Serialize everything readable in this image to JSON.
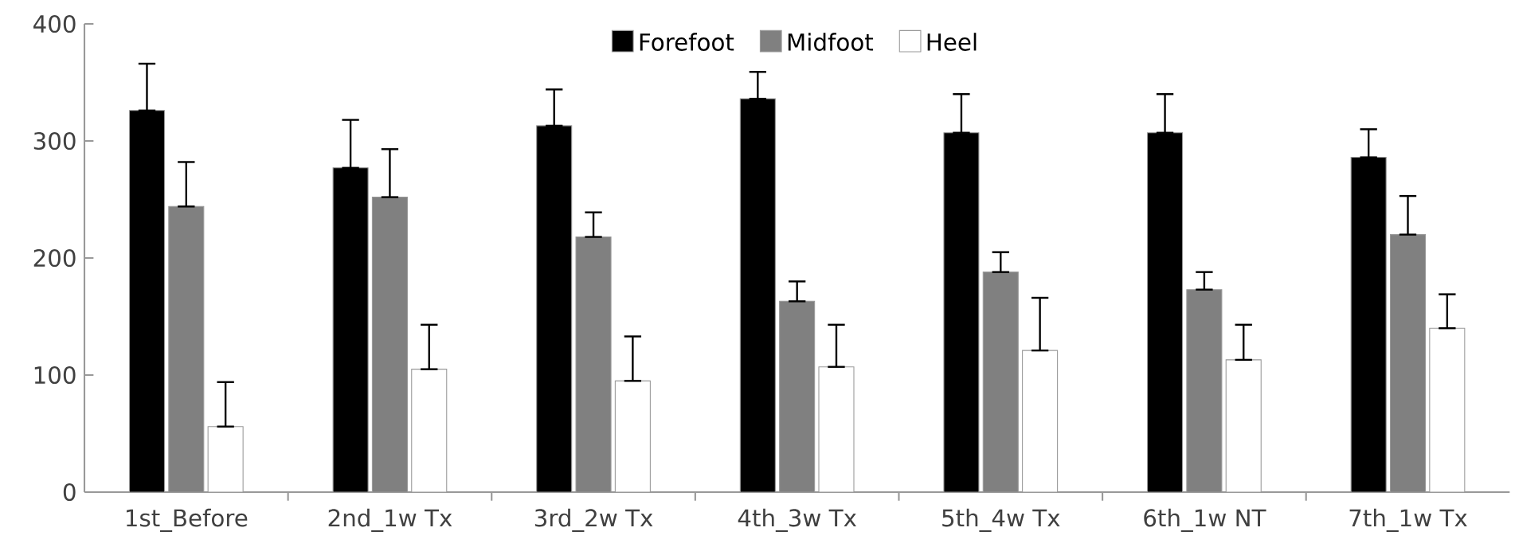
{
  "chart_data": {
    "type": "bar",
    "categories": [
      "1st_Before",
      "2nd_1w Tx",
      "3rd_2w Tx",
      "4th_3w Tx",
      "5th_4w Tx",
      "6th_1w NT",
      "7th_1w Tx"
    ],
    "series": [
      {
        "name": "Forefoot",
        "color": "#000000",
        "values": [
          326,
          277,
          313,
          336,
          307,
          307,
          286
        ],
        "errors": [
          [
            326,
            366
          ],
          [
            277,
            318
          ],
          [
            313,
            344
          ],
          [
            336,
            359
          ],
          [
            307,
            340
          ],
          [
            307,
            340
          ],
          [
            286,
            310
          ]
        ]
      },
      {
        "name": "Midfoot",
        "color": "#808080",
        "values": [
          244,
          252,
          218,
          163,
          188,
          173,
          220
        ],
        "errors": [
          [
            244,
            282
          ],
          [
            252,
            293
          ],
          [
            218,
            239
          ],
          [
            163,
            180
          ],
          [
            188,
            205
          ],
          [
            173,
            188
          ],
          [
            220,
            253
          ]
        ]
      },
      {
        "name": "Heel",
        "color": "#ffffff",
        "values": [
          56,
          105,
          95,
          107,
          121,
          113,
          140
        ],
        "errors": [
          [
            56,
            94
          ],
          [
            105,
            143
          ],
          [
            95,
            133
          ],
          [
            107,
            143
          ],
          [
            121,
            166
          ],
          [
            113,
            143
          ],
          [
            140,
            169
          ]
        ]
      }
    ],
    "ylim": [
      0,
      400
    ],
    "yticks": [
      0,
      100,
      200,
      300,
      400
    ],
    "grid": false,
    "legend": "top"
  }
}
